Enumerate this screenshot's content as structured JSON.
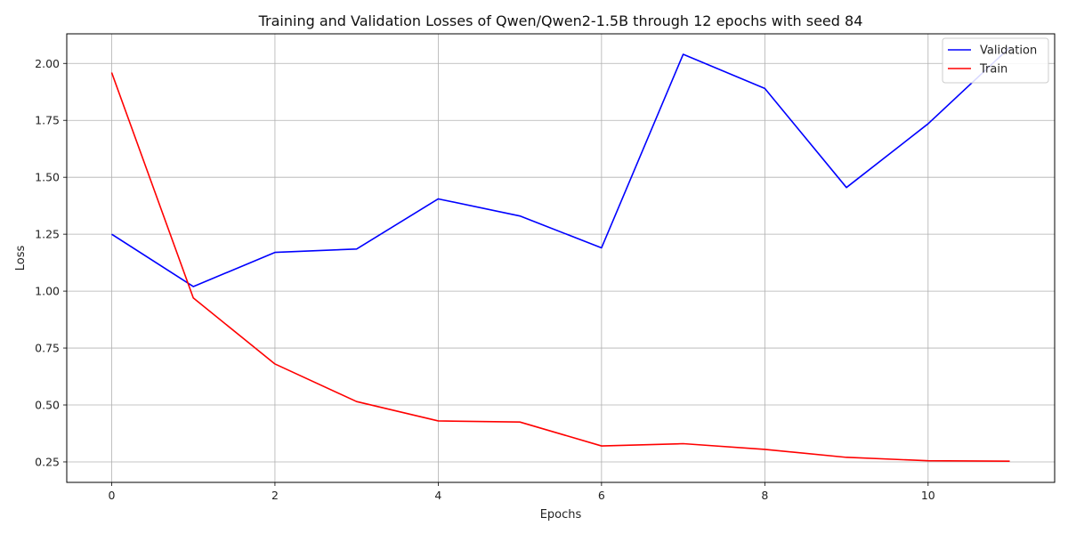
{
  "chart_data": {
    "type": "line",
    "title": "Training and Validation Losses of Qwen/Qwen2-1.5B through 12 epochs with seed 84",
    "xlabel": "Epochs",
    "ylabel": "Loss",
    "x": [
      0,
      1,
      2,
      3,
      4,
      5,
      6,
      7,
      8,
      9,
      10,
      11
    ],
    "xlim": [
      -0.55,
      11.55
    ],
    "ylim": [
      0.16,
      2.13
    ],
    "xticks": [
      0,
      2,
      4,
      6,
      8,
      10
    ],
    "yticks": [
      0.25,
      0.5,
      0.75,
      1.0,
      1.25,
      1.5,
      1.75,
      2.0
    ],
    "ytick_labels": [
      "0.25",
      "0.50",
      "0.75",
      "1.00",
      "1.25",
      "1.50",
      "1.75",
      "2.00"
    ],
    "grid": true,
    "legend": "top-right",
    "series": [
      {
        "name": "Validation",
        "color": "#0000ff",
        "values": [
          1.25,
          1.02,
          1.17,
          1.185,
          1.405,
          1.33,
          1.19,
          2.04,
          1.89,
          1.455,
          1.735,
          2.07
        ]
      },
      {
        "name": "Train",
        "color": "#ff0000",
        "values": [
          1.96,
          0.97,
          0.68,
          0.515,
          0.43,
          0.425,
          0.32,
          0.33,
          0.305,
          0.27,
          0.255,
          0.253
        ]
      }
    ]
  }
}
